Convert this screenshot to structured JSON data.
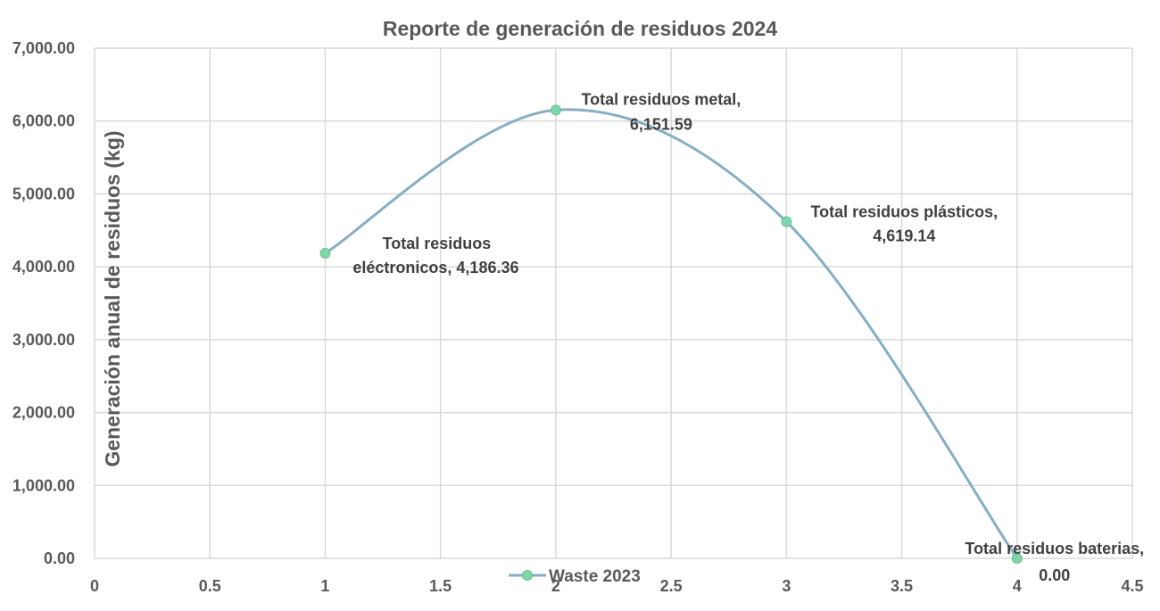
{
  "chart_data": {
    "type": "scatter",
    "title": "Reporte de generación de residuos 2024",
    "xlabel": "",
    "ylabel": "Generación anual de residuos (kg)",
    "xlim": [
      0,
      4.5
    ],
    "ylim": [
      0,
      7000
    ],
    "x_ticks": [
      "0",
      "0.5",
      "1",
      "1.5",
      "2",
      "2.5",
      "3",
      "3.5",
      "4",
      "4.5"
    ],
    "y_ticks": [
      "0.00",
      "1,000.00",
      "2,000.00",
      "3,000.00",
      "4,000.00",
      "5,000.00",
      "6,000.00",
      "7,000.00"
    ],
    "grid": true,
    "smooth_line": true,
    "legend_position": "bottom",
    "series": [
      {
        "name": "Waste 2023",
        "color": "#86aec4",
        "marker_color": "#7fd6a9",
        "points": [
          {
            "x": 1,
            "y": 4186.36,
            "label": [
              "Total residuos",
              "eléctronicos, 4,186.36"
            ]
          },
          {
            "x": 2,
            "y": 6151.59,
            "label": [
              "Total residuos metal,",
              "6,151.59"
            ]
          },
          {
            "x": 3,
            "y": 4619.14,
            "label": [
              "Total residuos plásticos,",
              "4,619.14"
            ]
          },
          {
            "x": 4,
            "y": 0.0,
            "label": [
              "Total residuos baterias,",
              "0.00"
            ]
          }
        ]
      }
    ]
  }
}
